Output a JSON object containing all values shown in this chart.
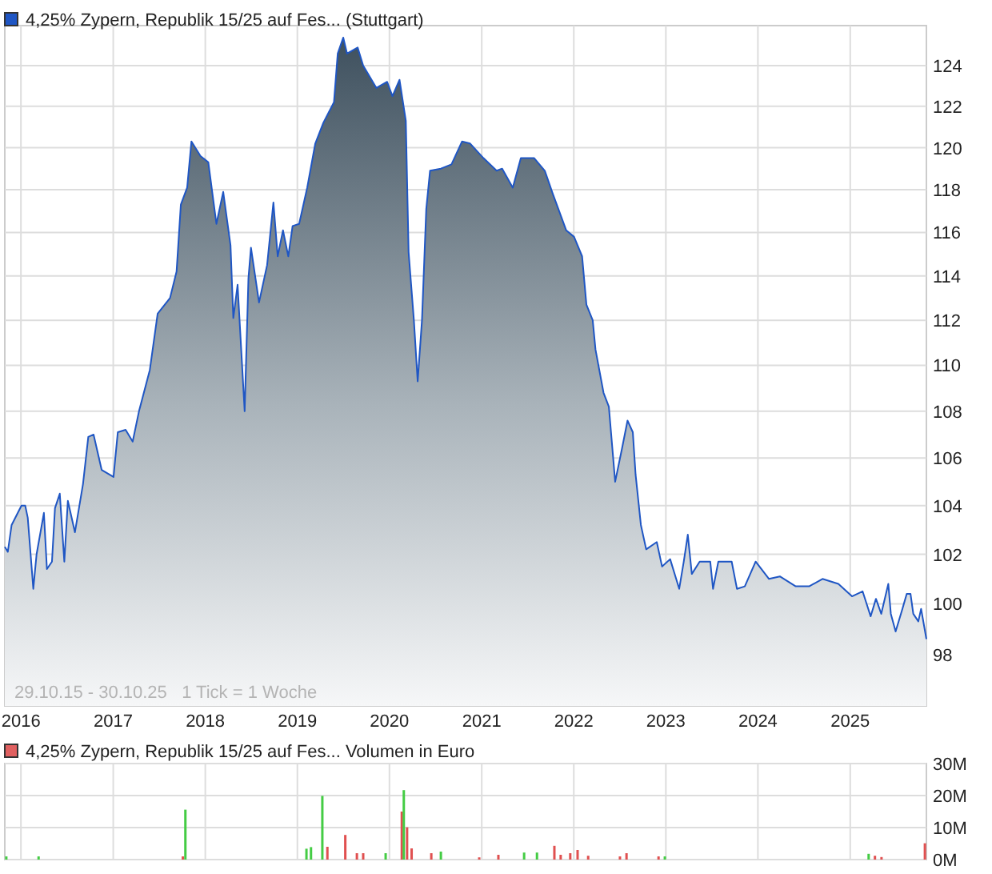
{
  "chart_data": [
    {
      "type": "area",
      "log": "y",
      "grid": true,
      "legend": "top left",
      "annotations": [
        "29.10.15 - 30.10.25   1 Tick = 1 Woche"
      ],
      "x": [
        "2015-10-29",
        "2015-11-10",
        "2015-11-25",
        "2016-01-03",
        "2016-01-18",
        "2016-01-28",
        "2016-02-19",
        "2016-03-03",
        "2016-04-01",
        "2016-04-13",
        "2016-05-03",
        "2016-05-15",
        "2016-06-03",
        "2016-06-21",
        "2016-07-05",
        "2016-08-02",
        "2016-09-03",
        "2016-09-24",
        "2016-10-15",
        "2016-11-16",
        "2017-01-02",
        "2017-01-19",
        "2017-02-19",
        "2017-03-19",
        "2017-04-13",
        "2017-05-26",
        "2017-06-26",
        "2017-08-14",
        "2017-09-09",
        "2017-09-26",
        "2017-10-21",
        "2017-11-07",
        "2017-12-13",
        "2018-01-13",
        "2018-02-14",
        "2018-03-13",
        "2018-04-11",
        "2018-04-22",
        "2018-05-09",
        "2018-06-06",
        "2018-06-21",
        "2018-07-01",
        "2018-08-02",
        "2018-09-03",
        "2018-09-28",
        "2018-10-15",
        "2018-11-05",
        "2018-11-26",
        "2018-12-13",
        "2019-01-08",
        "2019-02-09",
        "2019-03-13",
        "2019-04-14",
        "2019-05-26",
        "2019-06-10",
        "2019-07-02",
        "2019-07-17",
        "2019-08-28",
        "2019-09-19",
        "2019-11-10",
        "2019-12-23",
        "2020-01-13",
        "2020-02-10",
        "2020-03-06",
        "2020-03-17",
        "2020-04-07",
        "2020-04-22",
        "2020-05-09",
        "2020-05-26",
        "2020-06-10",
        "2020-07-23",
        "2020-09-03",
        "2020-10-15",
        "2020-11-16",
        "2021-01-08",
        "2021-03-01",
        "2021-03-23",
        "2021-05-04",
        "2021-06-05",
        "2021-07-28",
        "2021-09-08",
        "2021-10-10",
        "2021-12-02",
        "2022-01-02",
        "2022-02-03",
        "2022-02-20",
        "2022-03-17",
        "2022-03-28",
        "2022-04-29",
        "2022-05-20",
        "2022-06-14",
        "2022-07-11",
        "2022-08-02",
        "2022-08-23",
        "2022-09-03",
        "2022-09-24",
        "2022-10-15",
        "2022-11-26",
        "2022-12-17",
        "2023-01-18",
        "2023-02-23",
        "2023-03-13",
        "2023-03-29",
        "2023-04-14",
        "2023-05-15",
        "2023-06-26",
        "2023-07-07",
        "2023-07-28",
        "2023-09-19",
        "2023-10-10",
        "2023-11-10",
        "2023-12-23",
        "2024-02-14",
        "2024-03-28",
        "2024-05-30",
        "2024-07-22",
        "2024-09-13",
        "2024-11-15",
        "2025-01-08",
        "2025-02-19",
        "2025-03-23",
        "2025-04-13",
        "2025-05-04",
        "2025-06-01",
        "2025-06-11",
        "2025-06-30",
        "2025-07-27",
        "2025-08-13",
        "2025-08-28",
        "2025-09-08",
        "2025-09-28",
        "2025-10-09",
        "2025-10-30"
      ],
      "series": [
        {
          "name": "4,25% Zypern, Republik 15/25 auf Fes... (Stuttgart)",
          "color": "#1f56c4",
          "values": [
            102.3,
            102.1,
            103.2,
            104.0,
            104.0,
            103.5,
            100.6,
            102.0,
            103.7,
            101.4,
            101.7,
            103.9,
            104.5,
            101.7,
            104.2,
            102.9,
            104.9,
            106.9,
            107.0,
            105.5,
            105.2,
            107.1,
            107.2,
            106.7,
            108.0,
            109.8,
            112.3,
            113.0,
            114.2,
            117.3,
            118.1,
            120.3,
            119.6,
            119.3,
            116.4,
            117.9,
            115.4,
            112.1,
            113.6,
            108.0,
            113.9,
            115.3,
            112.8,
            114.5,
            117.4,
            114.9,
            116.1,
            114.9,
            116.3,
            116.4,
            118.1,
            120.2,
            121.2,
            122.2,
            124.6,
            125.4,
            124.6,
            124.9,
            124.0,
            122.9,
            123.2,
            122.5,
            123.3,
            121.3,
            115.1,
            112.0,
            109.3,
            112.0,
            117.1,
            118.9,
            119.0,
            119.2,
            120.3,
            120.2,
            119.5,
            118.9,
            119.0,
            118.1,
            119.5,
            119.5,
            118.9,
            117.8,
            116.1,
            115.8,
            114.9,
            112.7,
            112.0,
            110.7,
            108.8,
            108.2,
            105.0,
            106.4,
            107.6,
            107.1,
            105.3,
            103.2,
            102.2,
            102.5,
            101.5,
            101.8,
            100.6,
            101.7,
            102.8,
            101.2,
            101.7,
            101.7,
            100.6,
            101.7,
            101.7,
            100.6,
            100.7,
            101.7,
            101.0,
            101.1,
            100.7,
            100.7,
            101.0,
            100.8,
            100.3,
            100.5,
            99.5,
            100.2,
            99.6,
            100.8,
            99.6,
            98.9,
            99.8,
            100.4,
            100.4,
            99.6,
            99.3,
            99.8,
            98.6
          ]
        }
      ],
      "xlim": [
        "2015-10-29",
        "2025-10-30"
      ],
      "xticks": [
        {
          "value": "2016-01-01",
          "label": "2016"
        },
        {
          "value": "2017-01-01",
          "label": "2017"
        },
        {
          "value": "2018-01-01",
          "label": "2018"
        },
        {
          "value": "2019-01-01",
          "label": "2019"
        },
        {
          "value": "2020-01-01",
          "label": "2020"
        },
        {
          "value": "2021-01-01",
          "label": "2021"
        },
        {
          "value": "2022-01-01",
          "label": "2022"
        },
        {
          "value": "2023-01-01",
          "label": "2023"
        },
        {
          "value": "2024-01-01",
          "label": "2024"
        },
        {
          "value": "2025-01-01",
          "label": "2025"
        }
      ],
      "ylim": [
        96,
        126
      ],
      "yticks": [
        98,
        100,
        102,
        104,
        106,
        108,
        110,
        112,
        114,
        116,
        118,
        120,
        122,
        124
      ]
    },
    {
      "type": "bar",
      "grid": true,
      "legend": "top left",
      "tick_labels": "y",
      "x": [
        "2015-11-04",
        "2016-03-11",
        "2017-10-04",
        "2017-10-14",
        "2019-02-06",
        "2019-02-24",
        "2019-04-10",
        "2019-04-30",
        "2019-07-10",
        "2019-08-25",
        "2019-09-19",
        "2019-12-17",
        "2020-02-19",
        "2020-02-27",
        "2020-03-11",
        "2020-03-29",
        "2020-06-15",
        "2020-07-23",
        "2020-12-22",
        "2021-03-08",
        "2021-06-18",
        "2021-08-08",
        "2021-10-16",
        "2021-11-10",
        "2021-12-18",
        "2022-01-16",
        "2022-02-27",
        "2022-07-03",
        "2022-07-29",
        "2022-12-03",
        "2022-12-28",
        "2025-03-15",
        "2025-04-09",
        "2025-05-05",
        "2025-10-24"
      ],
      "series": [
        {
          "name": "4,25% Zypern, Republik 15/25 auf Fes... Volumen in Euro",
          "color": "#e06060",
          "values": [
            1,
            1,
            1,
            15.6,
            3.4,
            3.9,
            19.9,
            4,
            7.7,
            2,
            2,
            2,
            15,
            21.7,
            10.1,
            3.5,
            2,
            2.5,
            0.7,
            1.5,
            2.2,
            2.2,
            4.3,
            1.5,
            2,
            3,
            1.2,
            1,
            2,
            1,
            1,
            1.8,
            1.2,
            0.8,
            5.1
          ],
          "colors": [
            "#44cc44",
            "#44cc44",
            "#e05050",
            "#44cc44",
            "#44cc44",
            "#44cc44",
            "#44cc44",
            "#e05050",
            "#e05050",
            "#e05050",
            "#e05050",
            "#44cc44",
            "#e05050",
            "#44cc44",
            "#e05050",
            "#e05050",
            "#e05050",
            "#44cc44",
            "#e05050",
            "#e05050",
            "#44cc44",
            "#44cc44",
            "#e05050",
            "#e05050",
            "#e05050",
            "#e05050",
            "#e05050",
            "#e05050",
            "#e05050",
            "#e05050",
            "#44cc44",
            "#44cc44",
            "#e05050",
            "#e05050",
            "#e05050"
          ]
        }
      ],
      "xlim": [
        "2015-10-29",
        "2025-10-30"
      ],
      "xticks": [
        {
          "value": "2016-01-01",
          "label": null
        },
        {
          "value": "2017-01-01",
          "label": null
        },
        {
          "value": "2018-01-01",
          "label": null
        },
        {
          "value": "2019-01-01",
          "label": null
        },
        {
          "value": "2020-01-01",
          "label": null
        },
        {
          "value": "2021-01-01",
          "label": null
        },
        {
          "value": "2022-01-01",
          "label": null
        },
        {
          "value": "2023-01-01",
          "label": null
        },
        {
          "value": "2024-01-01",
          "label": null
        },
        {
          "value": "2025-01-01",
          "label": null
        }
      ],
      "ylim": [
        0,
        30
      ],
      "yticks": [
        {
          "value": 0,
          "label": "0M"
        },
        {
          "value": 10,
          "label": "10M"
        },
        {
          "value": 20,
          "label": "20M"
        },
        {
          "value": 30,
          "label": "30M"
        }
      ]
    }
  ]
}
